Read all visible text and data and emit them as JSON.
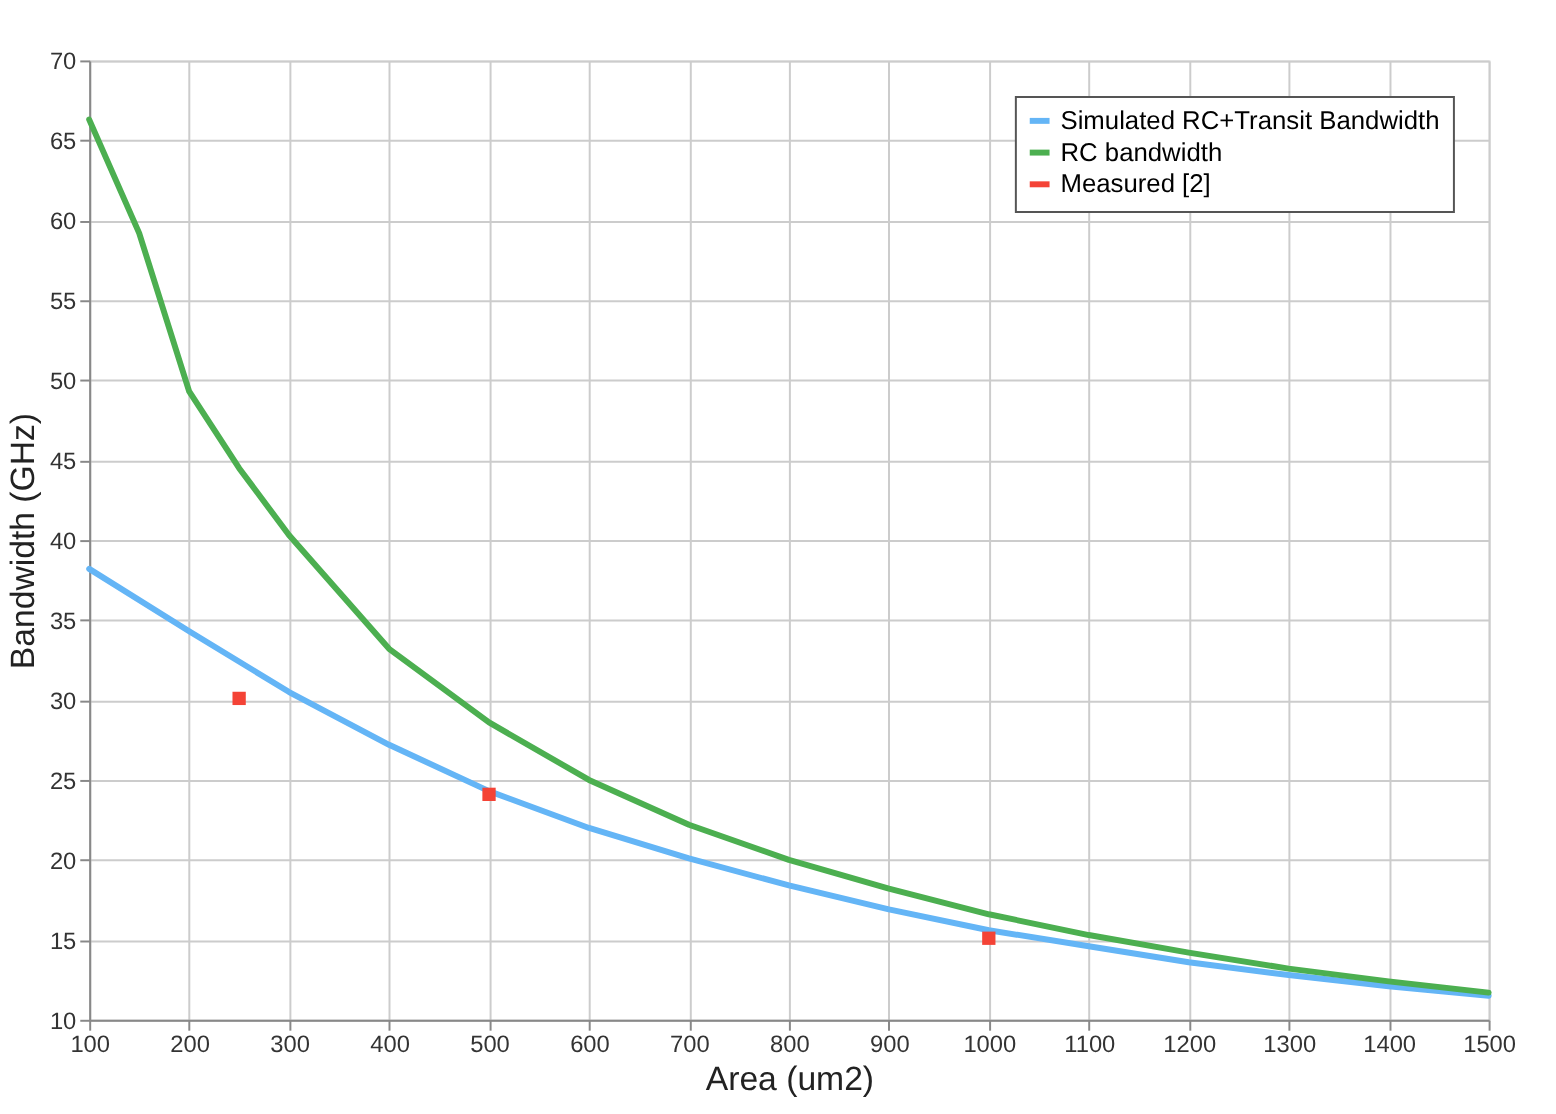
{
  "chart_data": {
    "type": "line",
    "xlabel": "Area (um2)",
    "ylabel": "Bandwidth (GHz)",
    "xlim": [
      100,
      1500
    ],
    "xticks": [
      100,
      200,
      300,
      400,
      500,
      600,
      700,
      800,
      900,
      1000,
      1100,
      1200,
      1300,
      1400,
      1500
    ],
    "ylim": [
      10,
      70
    ],
    "yticks": [
      10,
      15,
      20,
      25,
      30,
      35,
      40,
      45,
      50,
      55,
      60,
      65,
      70
    ],
    "grid": true,
    "legend": "top right",
    "series": [
      {
        "name": "Simulated RC+Transit Bandwidth",
        "color": "#64b5f6",
        "marker": "none",
        "x": [
          100,
          200,
          300,
          400,
          500,
          600,
          700,
          800,
          900,
          1000,
          1100,
          1200,
          1300,
          1400,
          1500
        ],
        "values": [
          38.2,
          34.3,
          30.5,
          27.2,
          24.3,
          22.0,
          20.1,
          18.4,
          16.9,
          15.6,
          14.6,
          13.6,
          12.8,
          12.1,
          11.5
        ]
      },
      {
        "name": "RC bandwidth",
        "color": "#4caf50",
        "marker": "none",
        "x": [
          100,
          150,
          200,
          250,
          300,
          400,
          500,
          600,
          700,
          800,
          900,
          1000,
          1100,
          1200,
          1300,
          1400,
          1500
        ],
        "values": [
          66.3,
          59.2,
          49.3,
          44.5,
          40.3,
          33.2,
          28.6,
          25.0,
          22.2,
          20.0,
          18.2,
          16.6,
          15.3,
          14.2,
          13.2,
          12.4,
          11.7
        ]
      },
      {
        "name": "Measured [2]",
        "color": "#f44336",
        "type": "scatter",
        "marker": "square",
        "x": [
          250,
          500,
          1000
        ],
        "values": [
          30.1,
          24.1,
          15.1
        ]
      }
    ]
  }
}
